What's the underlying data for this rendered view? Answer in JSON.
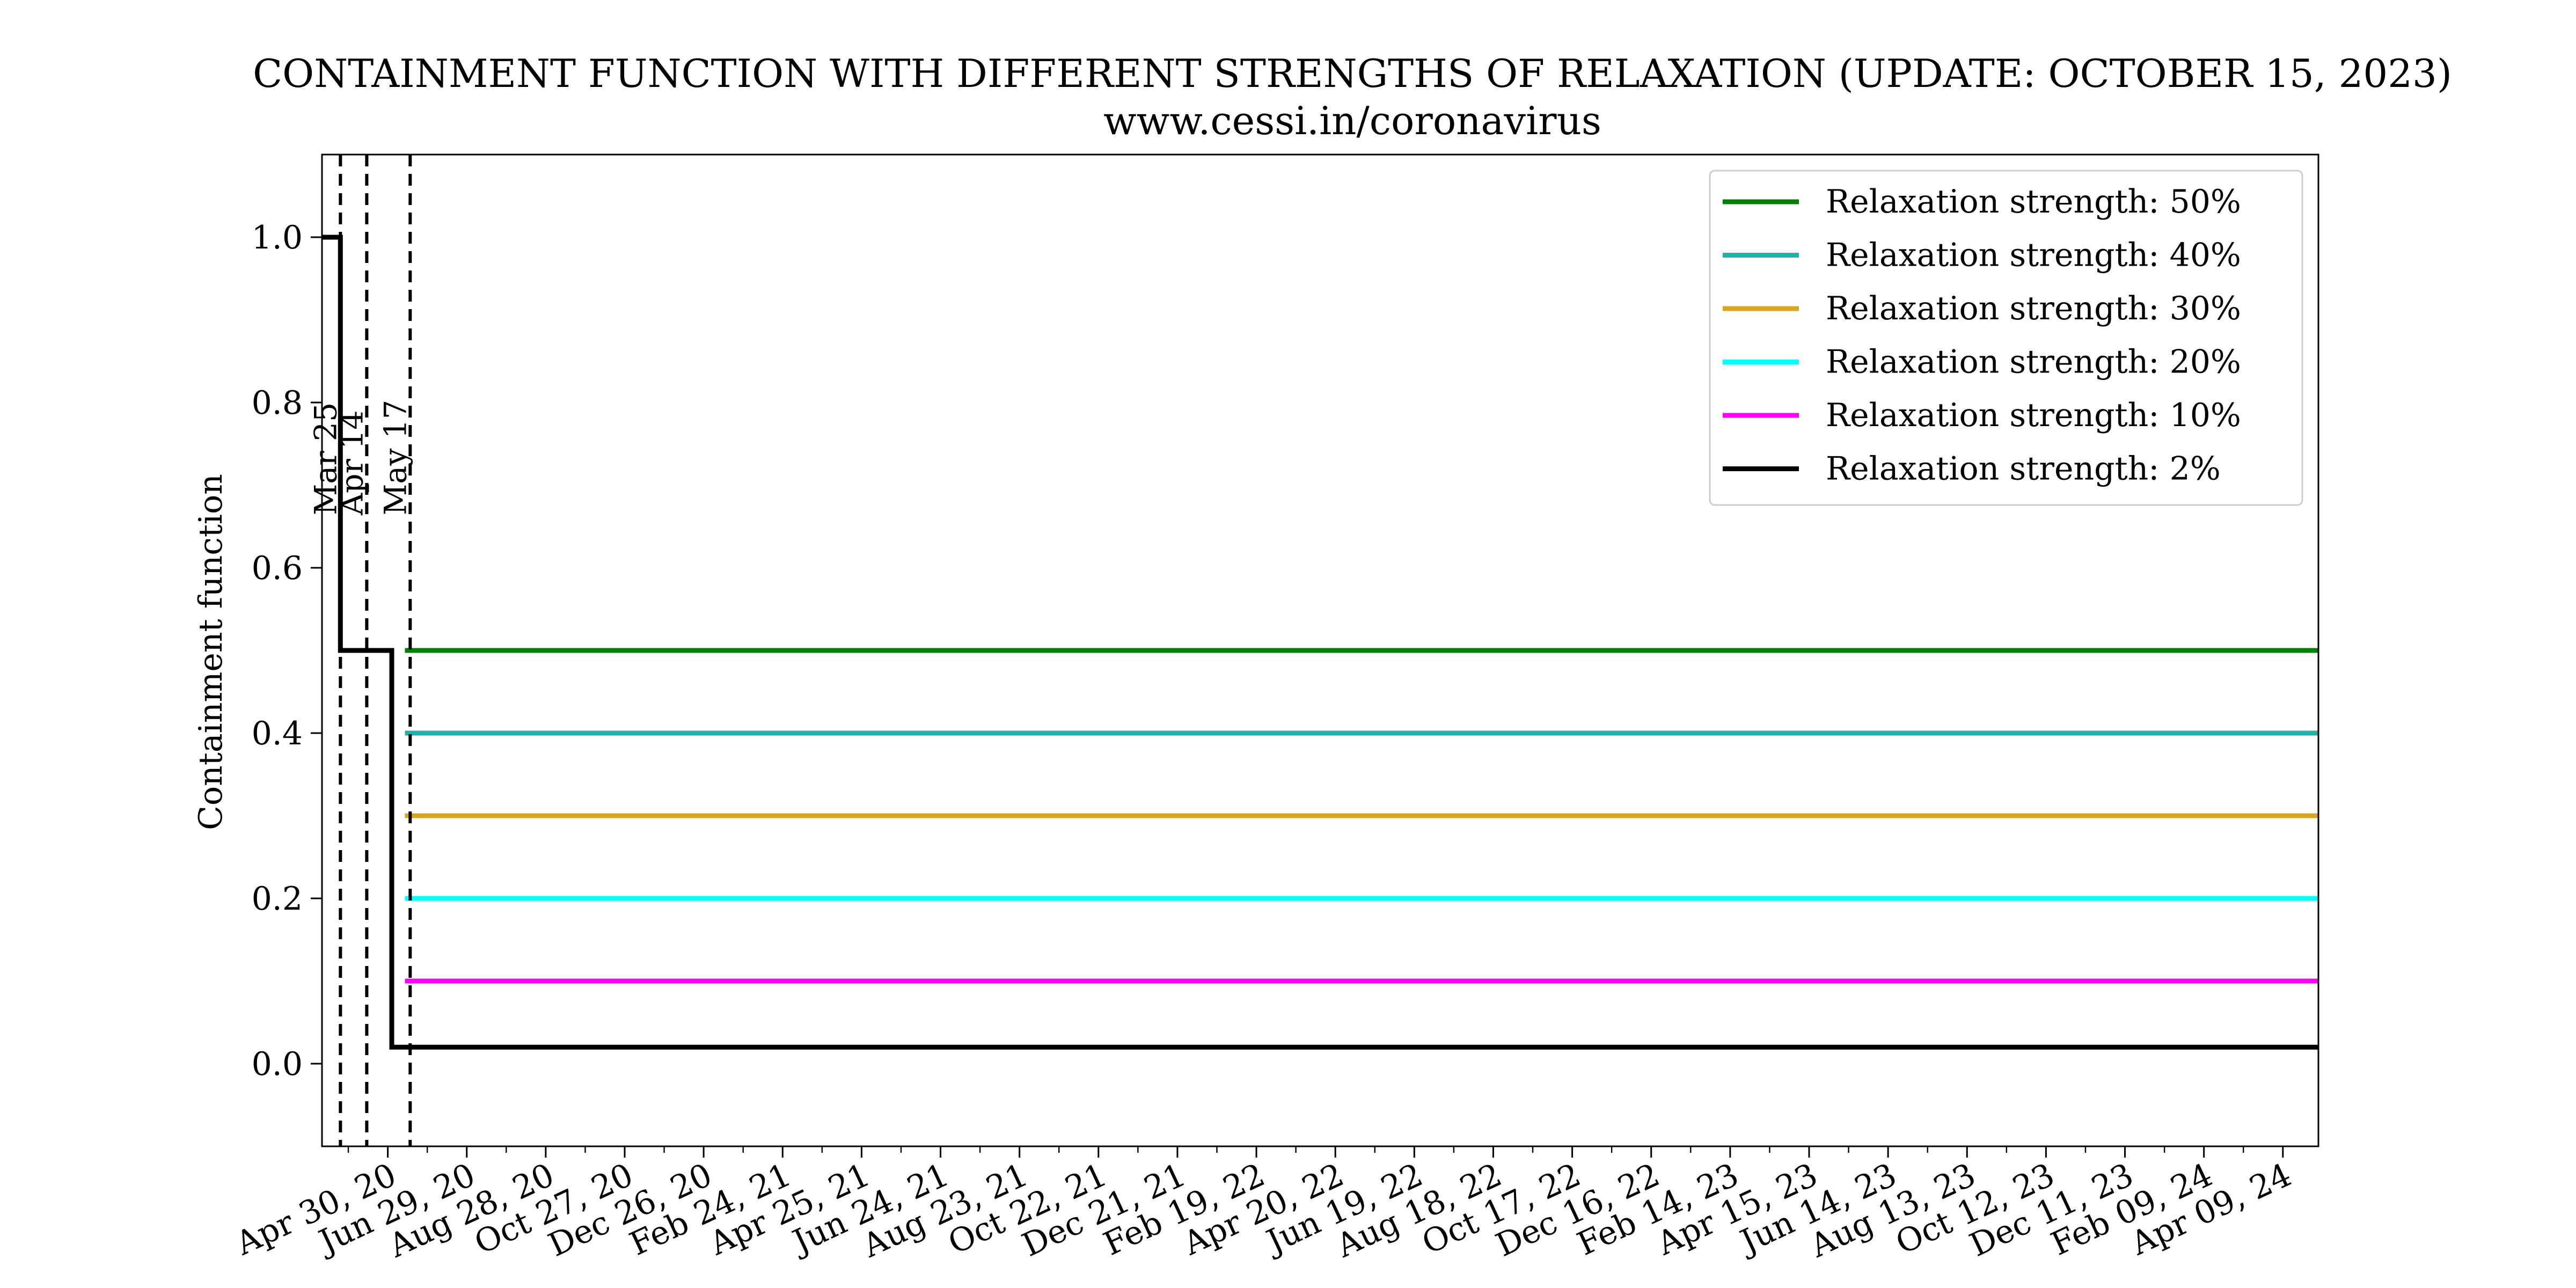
{
  "chart_data": {
    "type": "line",
    "title": "CONTAINMENT FUNCTION WITH DIFFERENT STRENGTHS OF RELAXATION (UPDATE: OCTOBER 15, 2023)",
    "subtitle": "www.cessi.in/coronavirus",
    "xlabel": "",
    "ylabel": "Containment function",
    "xlim": [
      "2020-03-11",
      "2024-05-06"
    ],
    "ylim": [
      -0.1,
      1.1
    ],
    "yticks": [
      0.0,
      0.2,
      0.4,
      0.6,
      0.8,
      1.0
    ],
    "ytick_labels": [
      "0.0",
      "0.2",
      "0.4",
      "0.6",
      "0.8",
      "1.0"
    ],
    "xticks": [
      "2020-04-30",
      "2020-06-29",
      "2020-08-28",
      "2020-10-27",
      "2020-12-26",
      "2021-02-24",
      "2021-04-25",
      "2021-06-24",
      "2021-08-23",
      "2021-10-22",
      "2021-12-21",
      "2022-02-19",
      "2022-04-20",
      "2022-06-19",
      "2022-08-18",
      "2022-10-17",
      "2022-12-16",
      "2023-02-14",
      "2023-04-15",
      "2023-06-14",
      "2023-08-13",
      "2023-10-12",
      "2023-12-11",
      "2024-02-09",
      "2024-04-09"
    ],
    "xtick_labels": [
      "Apr 30, 20",
      "Jun 29, 20",
      "Aug 28, 20",
      "Oct 27, 20",
      "Dec 26, 20",
      "Feb 24, 21",
      "Apr 25, 21",
      "Jun 24, 21",
      "Aug 23, 21",
      "Oct 22, 21",
      "Dec 21, 21",
      "Feb 19, 22",
      "Apr 20, 22",
      "Jun 19, 22",
      "Aug 18, 22",
      "Oct 17, 22",
      "Dec 16, 22",
      "Feb 14, 23",
      "Apr 15, 23",
      "Jun 14, 23",
      "Aug 13, 23",
      "Oct 12, 23",
      "Dec 11, 23",
      "Feb 09, 24",
      "Apr 09, 24"
    ],
    "minor_ticks_between_major": true,
    "grid": false,
    "legend_position": "top-right",
    "vlines": [
      {
        "x": "2020-03-25",
        "label": "Mar 25"
      },
      {
        "x": "2020-04-14",
        "label": "Apr 14"
      },
      {
        "x": "2020-05-17",
        "label": "May 17"
      }
    ],
    "series": [
      {
        "name": "Relaxation strength: 50%",
        "color": "#008000",
        "points": [
          [
            "2020-05-13",
            0.5
          ],
          [
            "2024-05-06",
            0.5
          ]
        ]
      },
      {
        "name": "Relaxation strength: 40%",
        "color": "#20B2AA",
        "points": [
          [
            "2020-05-13",
            0.4
          ],
          [
            "2024-05-06",
            0.4
          ]
        ]
      },
      {
        "name": "Relaxation strength: 30%",
        "color": "#DAA520",
        "points": [
          [
            "2020-05-13",
            0.3
          ],
          [
            "2024-05-06",
            0.3
          ]
        ]
      },
      {
        "name": "Relaxation strength: 20%",
        "color": "#00FFFF",
        "points": [
          [
            "2020-05-13",
            0.2
          ],
          [
            "2024-05-06",
            0.2
          ]
        ]
      },
      {
        "name": "Relaxation strength: 10%",
        "color": "#FF00FF",
        "points": [
          [
            "2020-05-13",
            0.1
          ],
          [
            "2024-05-06",
            0.1
          ]
        ]
      },
      {
        "name": "Relaxation strength: 2%",
        "color": "#000000",
        "points": [
          [
            "2020-03-11",
            1.0
          ],
          [
            "2020-03-25",
            1.0
          ],
          [
            "2020-03-25",
            0.5
          ],
          [
            "2020-05-03",
            0.5
          ],
          [
            "2020-05-03",
            0.02
          ],
          [
            "2024-05-06",
            0.02
          ]
        ]
      }
    ]
  }
}
